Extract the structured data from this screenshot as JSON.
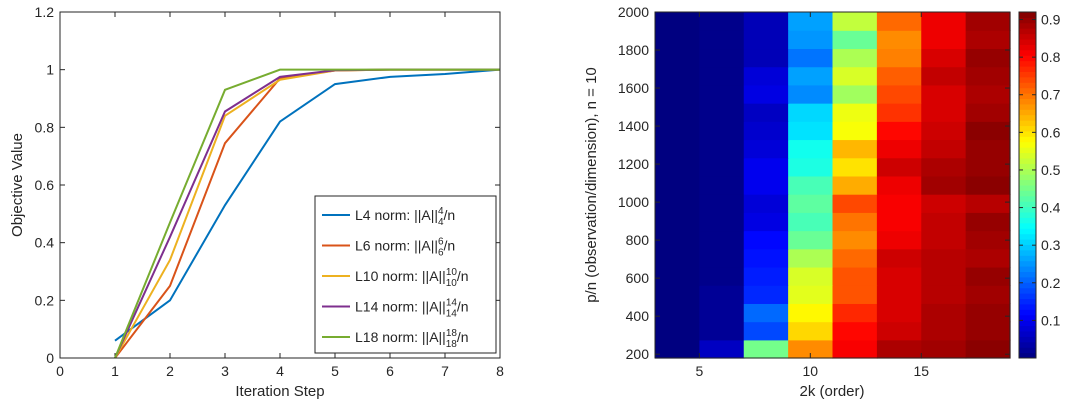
{
  "chart_data": [
    {
      "type": "line",
      "xlabel": "Iteration Step",
      "ylabel": "Objective Value",
      "xlim": [
        0,
        8
      ],
      "ylim": [
        0,
        1.2
      ],
      "xticks": [
        "0",
        "1",
        "2",
        "3",
        "4",
        "5",
        "6",
        "7",
        "8"
      ],
      "yticks": [
        "0",
        "0.2",
        "0.4",
        "0.6",
        "0.8",
        "1",
        "1.2"
      ],
      "grid": false,
      "legend_position": "bottom-right",
      "x": [
        1,
        2,
        3,
        4,
        5,
        6,
        7,
        8
      ],
      "series": [
        {
          "name": "L4 norm: ||A||",
          "norm_sup": "4",
          "norm_sub": "4",
          "suffix": "/n",
          "color": "#0072BD",
          "values": [
            0.06,
            0.2,
            0.53,
            0.82,
            0.95,
            0.975,
            0.985,
            1.0
          ]
        },
        {
          "name": "L6 norm: ||A||",
          "norm_sup": "6",
          "norm_sub": "6",
          "suffix": "/n",
          "color": "#D95319",
          "values": [
            0.0,
            0.25,
            0.745,
            0.97,
            0.997,
            1.0,
            1.0,
            1.0
          ]
        },
        {
          "name": "L10 norm: ||A||",
          "norm_sup": "10",
          "norm_sub": "10",
          "suffix": "/n",
          "color": "#EDB120",
          "values": [
            0.0,
            0.34,
            0.84,
            0.965,
            0.997,
            1.0,
            1.0,
            1.0
          ]
        },
        {
          "name": "L14 norm: ||A||",
          "norm_sup": "14",
          "norm_sub": "14",
          "suffix": "/n",
          "color": "#7E2F8E",
          "values": [
            0.0,
            0.42,
            0.855,
            0.975,
            0.998,
            1.0,
            1.0,
            1.0
          ]
        },
        {
          "name": "L18 norm: ||A||",
          "norm_sup": "18",
          "norm_sub": "18",
          "suffix": "/n",
          "color": "#77AC30",
          "values": [
            0.0,
            0.47,
            0.93,
            1.0,
            1.0,
            1.0,
            1.0,
            1.0
          ]
        }
      ]
    },
    {
      "type": "heatmap",
      "xlabel": "2k (order)",
      "ylabel": "p/n (observation/dimension), n = 10",
      "xlim": [
        3,
        19
      ],
      "ylim": [
        180,
        2000
      ],
      "xticks": [
        "5",
        "10",
        "15"
      ],
      "yticks": [
        "200",
        "400",
        "600",
        "800",
        "1000",
        "1200",
        "1400",
        "1600",
        "1800",
        "2000"
      ],
      "x": [
        4,
        6,
        8,
        10,
        12,
        14,
        16,
        18
      ],
      "y": [
        200,
        300,
        400,
        500,
        600,
        700,
        800,
        900,
        1000,
        1100,
        1200,
        1300,
        1400,
        1500,
        1600,
        1700,
        1800,
        1900,
        2000
      ],
      "colorbar": {
        "range": [
          0,
          0.92
        ],
        "ticks": [
          "0.1",
          "0.2",
          "0.3",
          "0.4",
          "0.5",
          "0.6",
          "0.7",
          "0.8",
          "0.9"
        ],
        "colormap": "jet"
      },
      "values": [
        [
          0.0,
          0.06,
          0.45,
          0.68,
          0.81,
          0.88,
          0.89,
          0.91
        ],
        [
          0.0,
          0.02,
          0.18,
          0.61,
          0.8,
          0.85,
          0.88,
          0.9
        ],
        [
          0.0,
          0.02,
          0.21,
          0.58,
          0.77,
          0.84,
          0.88,
          0.9
        ],
        [
          0.0,
          0.02,
          0.15,
          0.55,
          0.73,
          0.84,
          0.87,
          0.89
        ],
        [
          0.0,
          0.01,
          0.14,
          0.54,
          0.73,
          0.84,
          0.87,
          0.9
        ],
        [
          0.0,
          0.01,
          0.13,
          0.5,
          0.71,
          0.85,
          0.87,
          0.88
        ],
        [
          0.0,
          0.01,
          0.12,
          0.44,
          0.68,
          0.82,
          0.86,
          0.89
        ],
        [
          0.0,
          0.01,
          0.09,
          0.41,
          0.7,
          0.81,
          0.86,
          0.9
        ],
        [
          0.0,
          0.01,
          0.08,
          0.43,
          0.74,
          0.81,
          0.85,
          0.87
        ],
        [
          0.0,
          0.01,
          0.1,
          0.41,
          0.65,
          0.82,
          0.89,
          0.91
        ],
        [
          0.0,
          0.01,
          0.1,
          0.37,
          0.6,
          0.85,
          0.88,
          0.9
        ],
        [
          0.0,
          0.01,
          0.08,
          0.36,
          0.64,
          0.82,
          0.86,
          0.9
        ],
        [
          0.0,
          0.01,
          0.07,
          0.32,
          0.57,
          0.8,
          0.85,
          0.91
        ],
        [
          0.0,
          0.01,
          0.06,
          0.31,
          0.56,
          0.76,
          0.84,
          0.89
        ],
        [
          0.0,
          0.01,
          0.09,
          0.24,
          0.49,
          0.74,
          0.84,
          0.88
        ],
        [
          0.0,
          0.01,
          0.08,
          0.26,
          0.54,
          0.72,
          0.86,
          0.89
        ],
        [
          0.0,
          0.01,
          0.05,
          0.22,
          0.5,
          0.69,
          0.84,
          0.9
        ],
        [
          0.0,
          0.01,
          0.05,
          0.25,
          0.44,
          0.68,
          0.82,
          0.88
        ],
        [
          0.0,
          0.01,
          0.05,
          0.26,
          0.52,
          0.71,
          0.82,
          0.89
        ]
      ]
    }
  ]
}
